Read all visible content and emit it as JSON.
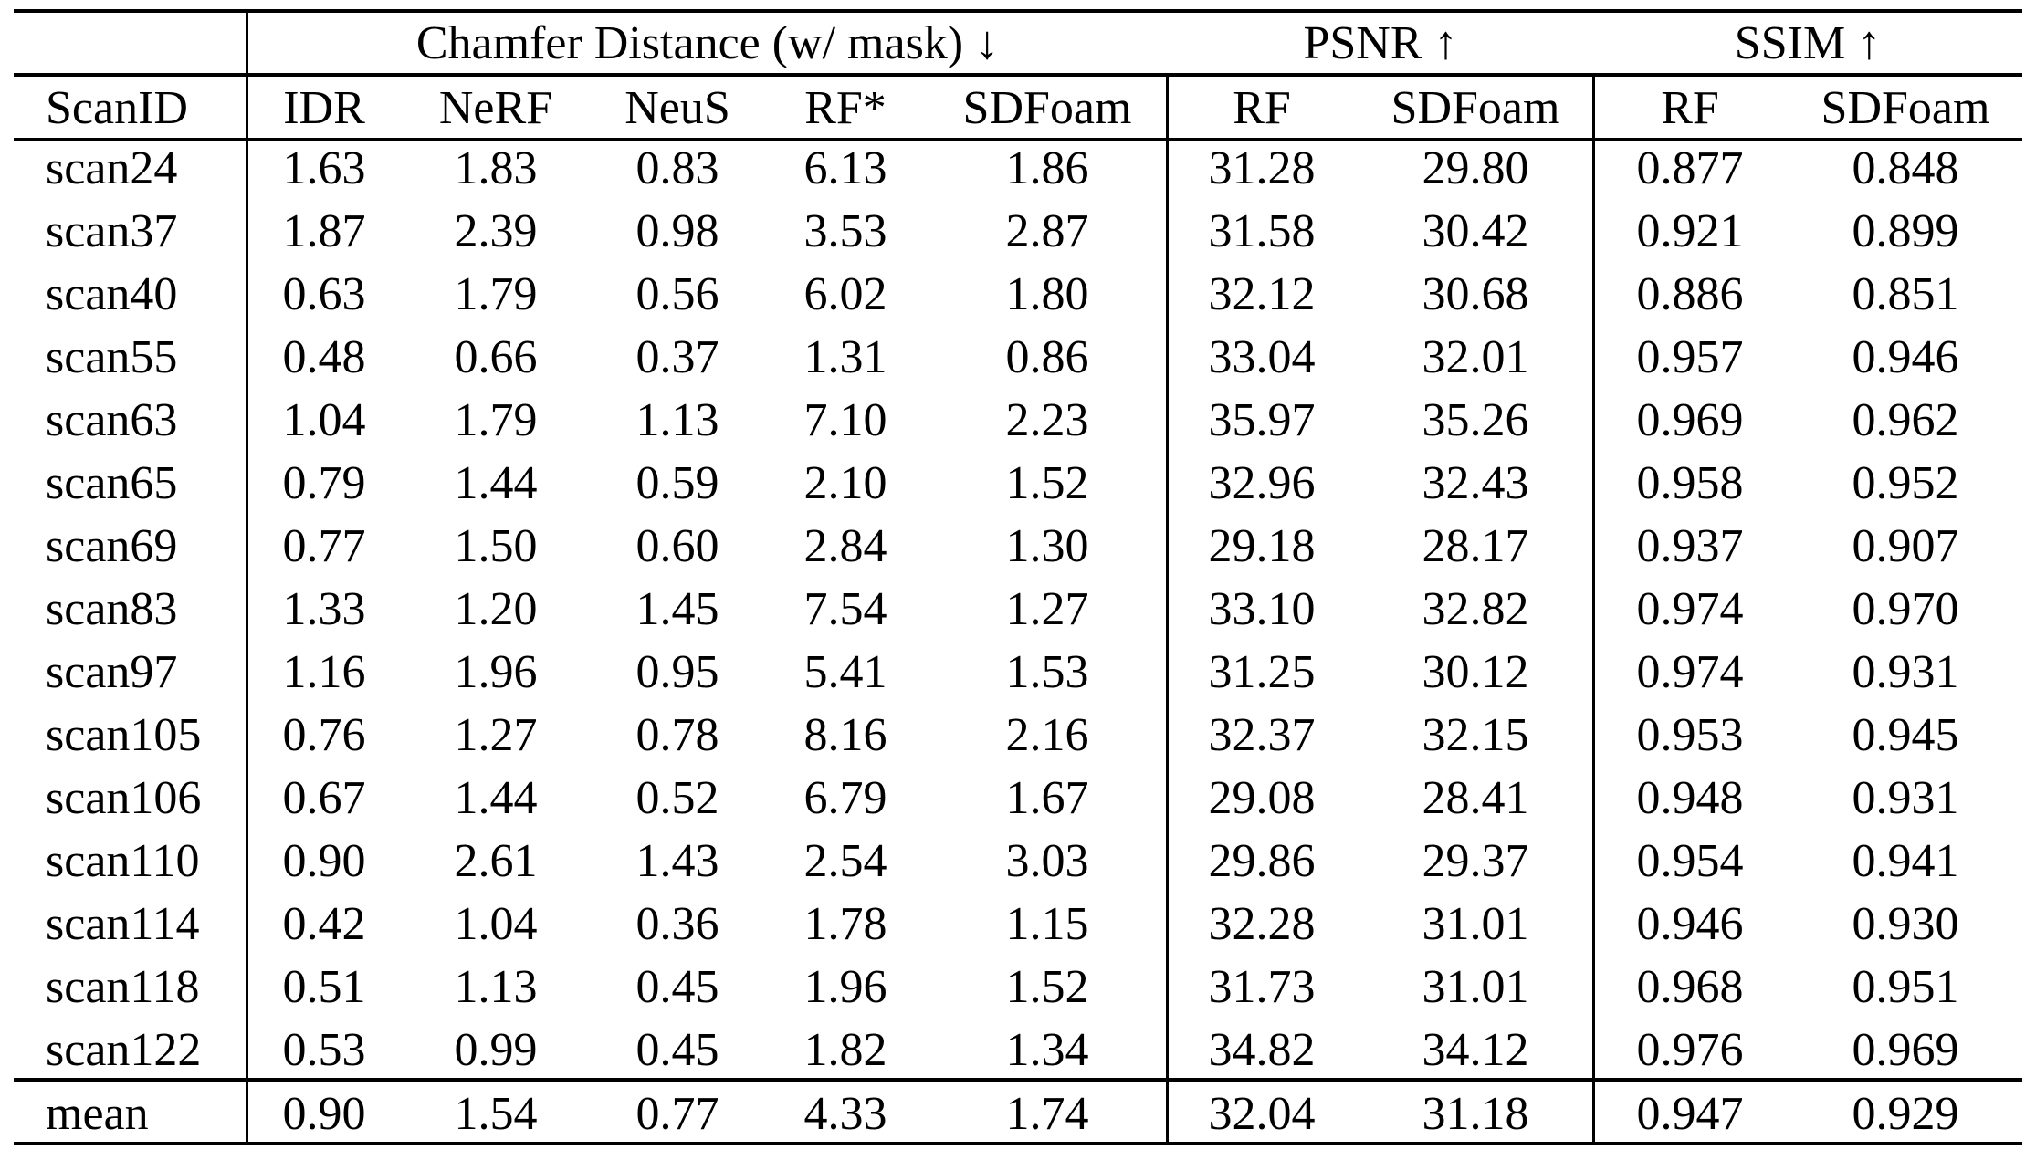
{
  "table": {
    "group_headers": [
      {
        "label": "Chamfer Distance (w/ mask) ↓",
        "metric": "Chamfer Distance",
        "direction": "lower-is-better"
      },
      {
        "label": "PSNR ↑",
        "metric": "PSNR",
        "direction": "higher-is-better"
      },
      {
        "label": "SSIM ↑",
        "metric": "SSIM",
        "direction": "higher-is-better"
      }
    ],
    "column_headers": [
      "ScanID",
      "IDR",
      "NeRF",
      "NeuS",
      "RF*",
      "SDFoam",
      "RF",
      "SDFoam",
      "RF",
      "SDFoam"
    ],
    "rows": [
      [
        "scan24",
        "1.63",
        "1.83",
        "0.83",
        "6.13",
        "1.86",
        "31.28",
        "29.80",
        "0.877",
        "0.848"
      ],
      [
        "scan37",
        "1.87",
        "2.39",
        "0.98",
        "3.53",
        "2.87",
        "31.58",
        "30.42",
        "0.921",
        "0.899"
      ],
      [
        "scan40",
        "0.63",
        "1.79",
        "0.56",
        "6.02",
        "1.80",
        "32.12",
        "30.68",
        "0.886",
        "0.851"
      ],
      [
        "scan55",
        "0.48",
        "0.66",
        "0.37",
        "1.31",
        "0.86",
        "33.04",
        "32.01",
        "0.957",
        "0.946"
      ],
      [
        "scan63",
        "1.04",
        "1.79",
        "1.13",
        "7.10",
        "2.23",
        "35.97",
        "35.26",
        "0.969",
        "0.962"
      ],
      [
        "scan65",
        "0.79",
        "1.44",
        "0.59",
        "2.10",
        "1.52",
        "32.96",
        "32.43",
        "0.958",
        "0.952"
      ],
      [
        "scan69",
        "0.77",
        "1.50",
        "0.60",
        "2.84",
        "1.30",
        "29.18",
        "28.17",
        "0.937",
        "0.907"
      ],
      [
        "scan83",
        "1.33",
        "1.20",
        "1.45",
        "7.54",
        "1.27",
        "33.10",
        "32.82",
        "0.974",
        "0.970"
      ],
      [
        "scan97",
        "1.16",
        "1.96",
        "0.95",
        "5.41",
        "1.53",
        "31.25",
        "30.12",
        "0.974",
        "0.931"
      ],
      [
        "scan105",
        "0.76",
        "1.27",
        "0.78",
        "8.16",
        "2.16",
        "32.37",
        "32.15",
        "0.953",
        "0.945"
      ],
      [
        "scan106",
        "0.67",
        "1.44",
        "0.52",
        "6.79",
        "1.67",
        "29.08",
        "28.41",
        "0.948",
        "0.931"
      ],
      [
        "scan110",
        "0.90",
        "2.61",
        "1.43",
        "2.54",
        "3.03",
        "29.86",
        "29.37",
        "0.954",
        "0.941"
      ],
      [
        "scan114",
        "0.42",
        "1.04",
        "0.36",
        "1.78",
        "1.15",
        "32.28",
        "31.01",
        "0.946",
        "0.930"
      ],
      [
        "scan118",
        "0.51",
        "1.13",
        "0.45",
        "1.96",
        "1.52",
        "31.73",
        "31.01",
        "0.968",
        "0.951"
      ],
      [
        "scan122",
        "0.53",
        "0.99",
        "0.45",
        "1.82",
        "1.34",
        "34.82",
        "34.12",
        "0.976",
        "0.969"
      ]
    ],
    "summary_row": [
      "mean",
      "0.90",
      "1.54",
      "0.77",
      "4.33",
      "1.74",
      "32.04",
      "31.18",
      "0.947",
      "0.929"
    ]
  }
}
